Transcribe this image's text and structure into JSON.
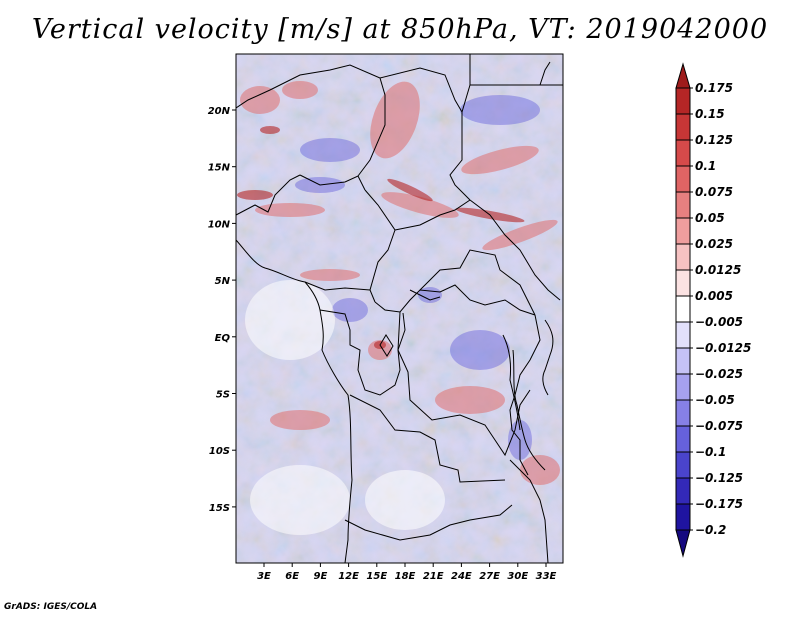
{
  "title": "Vertical velocity [m/s] at 850hPa, VT: 2019042000",
  "credit": "GrADS: IGES/COLA",
  "map": {
    "variable": "Vertical velocity",
    "units": "m/s",
    "level": "850hPa",
    "valid_time": "2019042000",
    "lat_labels": [
      "20N",
      "15N",
      "10N",
      "5N",
      "EQ",
      "5S",
      "10S",
      "15S"
    ],
    "lon_labels": [
      "3E",
      "6E",
      "9E",
      "12E",
      "15E",
      "18E",
      "21E",
      "24E",
      "27E",
      "30E",
      "33E"
    ]
  },
  "colorbar": {
    "labels": [
      "0.175",
      "0.15",
      "0.125",
      "0.1",
      "0.075",
      "0.05",
      "0.025",
      "0.0125",
      "0.005",
      "−0.005",
      "−0.0125",
      "−0.025",
      "−0.05",
      "−0.075",
      "−0.1",
      "−0.125",
      "−0.175",
      "−0.2"
    ],
    "colors": [
      "#9e1b1b",
      "#b52626",
      "#c73636",
      "#d64a4a",
      "#df6464",
      "#e78080",
      "#ef9e9e",
      "#f6c2c2",
      "#fbe2e2",
      "#ffffff",
      "#e2e0fb",
      "#c5c2f6",
      "#a6a1ef",
      "#8680e6",
      "#6661dc",
      "#4a44cc",
      "#3329b8",
      "#1f14a0",
      "#15097f"
    ]
  }
}
